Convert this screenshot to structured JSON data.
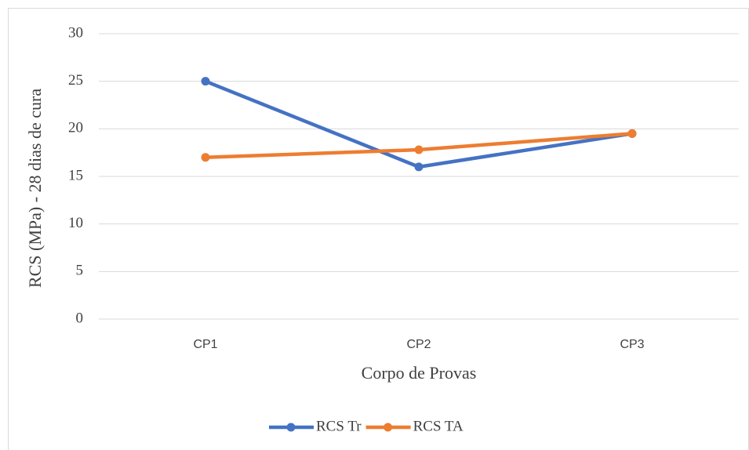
{
  "chart_data": {
    "type": "line",
    "x_label": "Corpo de Provas",
    "y_label": "RCS (MPa) - 28 dias de cura",
    "categories": [
      "CP1",
      "CP2",
      "CP3"
    ],
    "series": [
      {
        "name": "RCS Tr",
        "color": "#4472c4",
        "values": [
          25,
          16,
          19.5
        ]
      },
      {
        "name": "RCS TA",
        "color": "#ed7d31",
        "values": [
          17,
          17.8,
          19.5
        ]
      }
    ],
    "ylim": [
      0,
      30
    ],
    "yticks": [
      0,
      5,
      10,
      15,
      20,
      25,
      30
    ],
    "grid": true,
    "legend": "bottom"
  }
}
